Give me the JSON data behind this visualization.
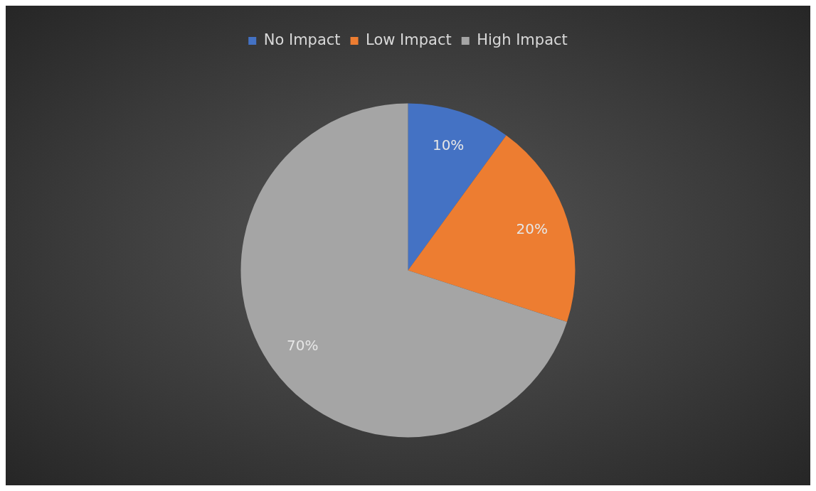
{
  "chart_data": {
    "type": "pie",
    "categories": [
      "No Impact",
      "Low Impact",
      "High Impact"
    ],
    "values": [
      10,
      20,
      70
    ],
    "colors": [
      "#4472c4",
      "#ed7d31",
      "#a5a5a5"
    ],
    "value_labels": [
      "10%",
      "20%",
      "70%"
    ],
    "legend": "top"
  }
}
